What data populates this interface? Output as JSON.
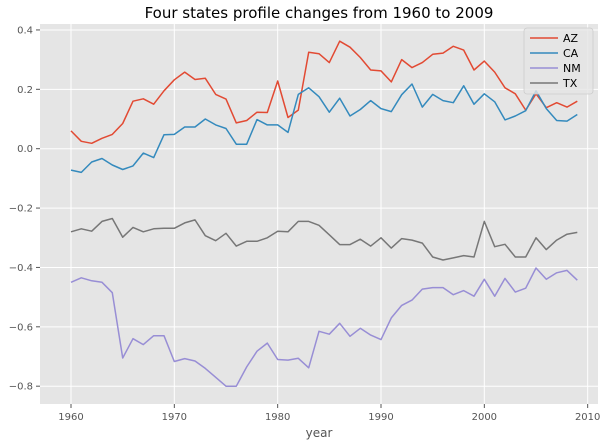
{
  "chart_data": {
    "type": "line",
    "title": "Four states profile changes from 1960 to 2009",
    "xlabel": "year",
    "ylabel": "",
    "xlim": [
      1957,
      2011
    ],
    "ylim": [
      -0.86,
      0.42
    ],
    "x_ticks": [
      1960,
      1970,
      1980,
      1990,
      2000,
      2010
    ],
    "y_ticks": [
      -0.8,
      -0.6,
      -0.4,
      -0.2,
      0.0,
      0.2,
      0.4
    ],
    "y_tick_labels": [
      "−0.8",
      "−0.6",
      "−0.4",
      "−0.2",
      "0.0",
      "0.2",
      "0.4"
    ],
    "grid": true,
    "legend_position": "top-right",
    "x": [
      1960,
      1961,
      1962,
      1963,
      1964,
      1965,
      1966,
      1967,
      1968,
      1969,
      1970,
      1971,
      1972,
      1973,
      1974,
      1975,
      1976,
      1977,
      1978,
      1979,
      1980,
      1981,
      1982,
      1983,
      1984,
      1985,
      1986,
      1987,
      1988,
      1989,
      1990,
      1991,
      1992,
      1993,
      1994,
      1995,
      1996,
      1997,
      1998,
      1999,
      2000,
      2001,
      2002,
      2003,
      2004,
      2005,
      2006,
      2007,
      2008,
      2009
    ],
    "series": [
      {
        "name": "AZ",
        "color": "#E24A33",
        "values": [
          0.06,
          0.025,
          0.018,
          0.035,
          0.048,
          0.085,
          0.16,
          0.168,
          0.15,
          0.195,
          0.232,
          0.258,
          0.233,
          0.237,
          0.183,
          0.167,
          0.087,
          0.095,
          0.123,
          0.122,
          0.228,
          0.105,
          0.13,
          0.325,
          0.32,
          0.29,
          0.362,
          0.342,
          0.307,
          0.265,
          0.262,
          0.225,
          0.3,
          0.273,
          0.29,
          0.318,
          0.322,
          0.345,
          0.332,
          0.265,
          0.295,
          0.258,
          0.205,
          0.185,
          0.13,
          0.185,
          0.138,
          0.155,
          0.14,
          0.16
        ]
      },
      {
        "name": "CA",
        "color": "#348ABD",
        "values": [
          -0.072,
          -0.08,
          -0.045,
          -0.033,
          -0.055,
          -0.07,
          -0.058,
          -0.015,
          -0.03,
          0.047,
          0.048,
          0.073,
          0.073,
          0.1,
          0.08,
          0.068,
          0.015,
          0.015,
          0.098,
          0.08,
          0.08,
          0.055,
          0.183,
          0.205,
          0.175,
          0.123,
          0.17,
          0.11,
          0.132,
          0.162,
          0.135,
          0.125,
          0.182,
          0.218,
          0.14,
          0.183,
          0.162,
          0.155,
          0.212,
          0.15,
          0.185,
          0.158,
          0.097,
          0.11,
          0.128,
          0.195,
          0.135,
          0.095,
          0.093,
          0.115
        ]
      },
      {
        "name": "NM",
        "color": "#988ED5",
        "values": [
          -0.45,
          -0.435,
          -0.445,
          -0.45,
          -0.485,
          -0.705,
          -0.64,
          -0.66,
          -0.63,
          -0.63,
          -0.717,
          -0.707,
          -0.715,
          -0.74,
          -0.77,
          -0.8,
          -0.8,
          -0.735,
          -0.682,
          -0.655,
          -0.71,
          -0.712,
          -0.706,
          -0.738,
          -0.615,
          -0.625,
          -0.588,
          -0.632,
          -0.605,
          -0.628,
          -0.643,
          -0.57,
          -0.528,
          -0.51,
          -0.473,
          -0.468,
          -0.468,
          -0.492,
          -0.478,
          -0.497,
          -0.44,
          -0.497,
          -0.437,
          -0.483,
          -0.47,
          -0.402,
          -0.44,
          -0.418,
          -0.41,
          -0.443
        ]
      },
      {
        "name": "TX",
        "color": "#777777",
        "values": [
          -0.28,
          -0.27,
          -0.278,
          -0.245,
          -0.235,
          -0.298,
          -0.265,
          -0.28,
          -0.27,
          -0.268,
          -0.268,
          -0.25,
          -0.24,
          -0.293,
          -0.31,
          -0.285,
          -0.328,
          -0.312,
          -0.312,
          -0.3,
          -0.278,
          -0.28,
          -0.245,
          -0.245,
          -0.258,
          -0.29,
          -0.323,
          -0.323,
          -0.305,
          -0.328,
          -0.3,
          -0.335,
          -0.303,
          -0.308,
          -0.318,
          -0.365,
          -0.375,
          -0.368,
          -0.36,
          -0.365,
          -0.245,
          -0.33,
          -0.322,
          -0.365,
          -0.365,
          -0.3,
          -0.34,
          -0.308,
          -0.288,
          -0.282
        ]
      }
    ]
  }
}
